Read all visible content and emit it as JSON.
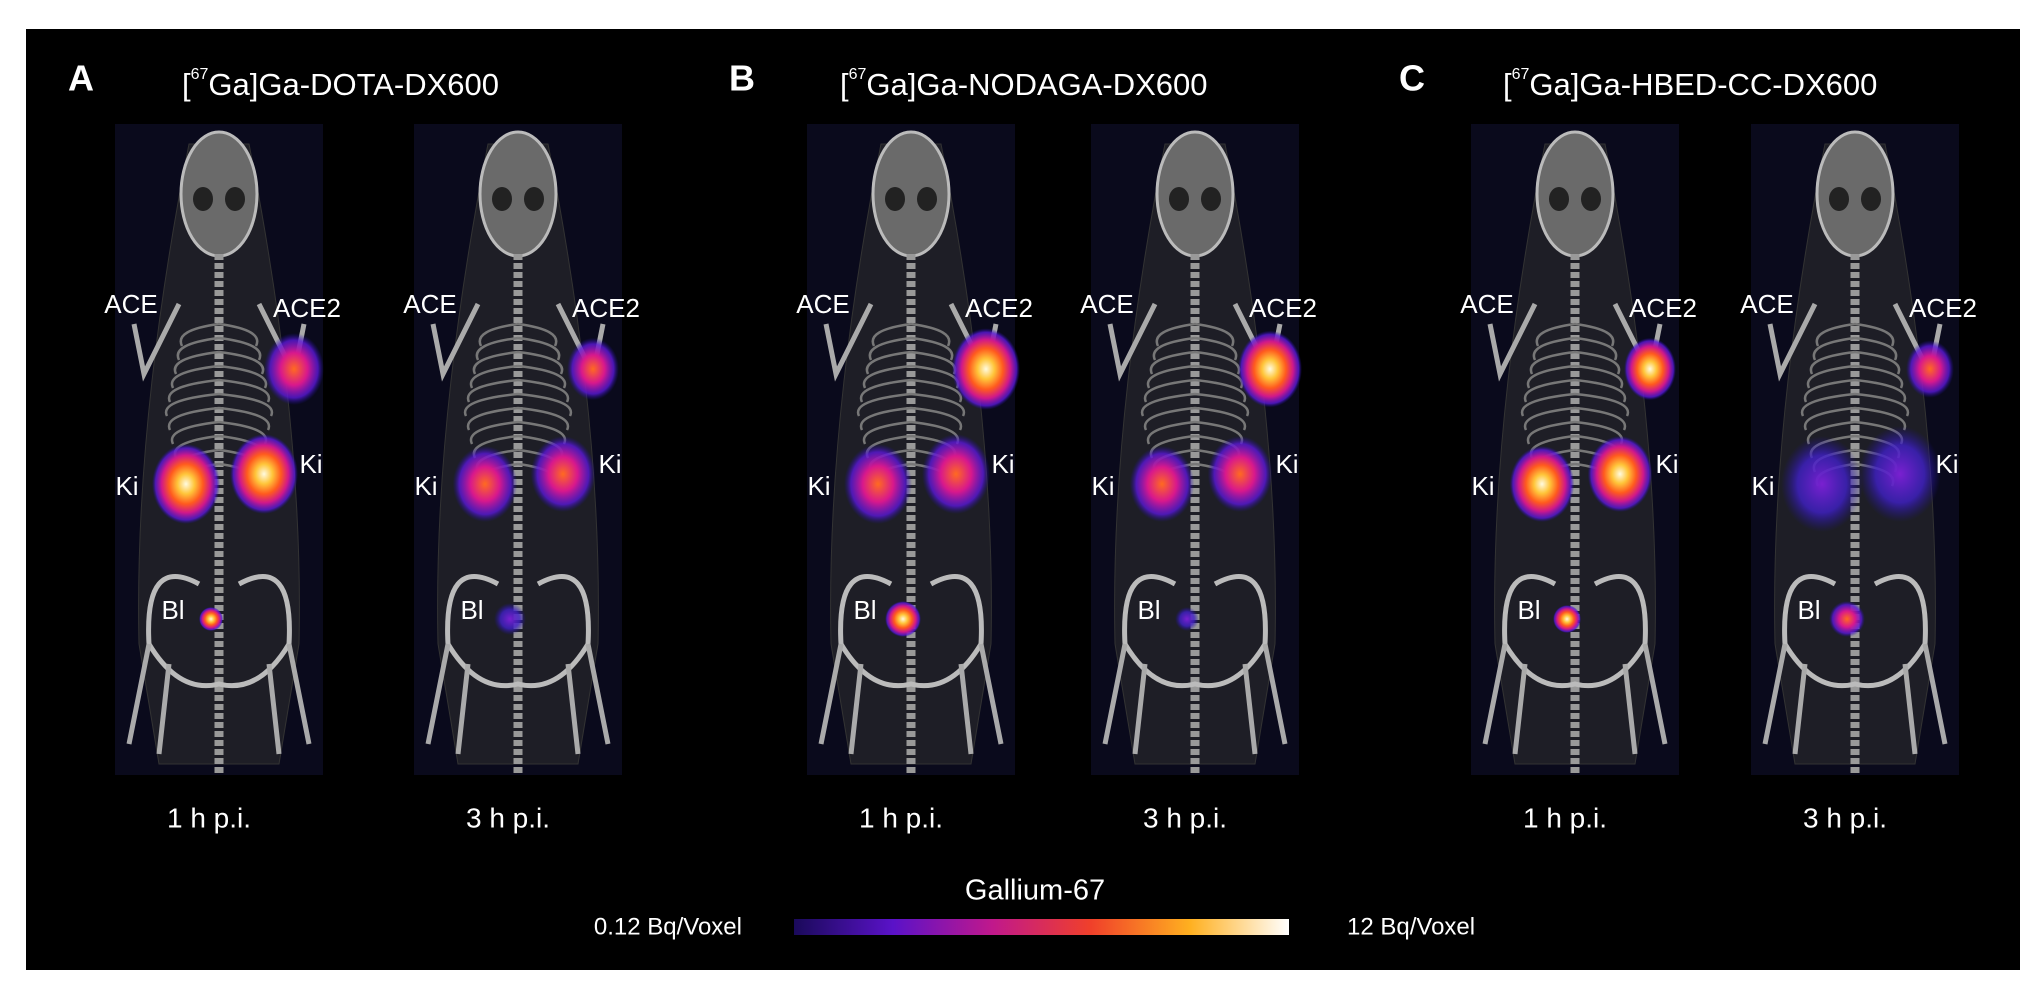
{
  "panels": [
    {
      "letter": "A",
      "title": {
        "open": "[",
        "mass": "67",
        "rest": "Ga]Ga-DOTA-DX600"
      },
      "mice": [
        {
          "time": "1 h p.i.",
          "labels": {
            "ace": "ACE",
            "ace2": "ACE2",
            "ki_left": "Ki",
            "ki_right": "Ki",
            "bl": "Bl"
          }
        },
        {
          "time": "3 h p.i.",
          "labels": {
            "ace": "ACE",
            "ace2": "ACE2",
            "ki_left": "Ki",
            "ki_right": "Ki",
            "bl": "Bl"
          }
        }
      ]
    },
    {
      "letter": "B",
      "title": {
        "open": "[",
        "mass": "67",
        "rest": "Ga]Ga-NODAGA-DX600"
      },
      "mice": [
        {
          "time": "1 h p.i.",
          "labels": {
            "ace": "ACE",
            "ace2": "ACE2",
            "ki_left": "Ki",
            "ki_right": "Ki",
            "bl": "Bl"
          }
        },
        {
          "time": "3 h p.i.",
          "labels": {
            "ace": "ACE",
            "ace2": "ACE2",
            "ki_left": "Ki",
            "ki_right": "Ki",
            "bl": "Bl"
          }
        }
      ]
    },
    {
      "letter": "C",
      "title": {
        "open": "[",
        "mass": "67",
        "rest": "Ga]Ga-HBED-CC-DX600"
      },
      "mice": [
        {
          "time": "1 h p.i.",
          "labels": {
            "ace": "ACE",
            "ace2": "ACE2",
            "ki_left": "Ki",
            "ki_right": "Ki",
            "bl": "Bl"
          }
        },
        {
          "time": "3 h p.i.",
          "labels": {
            "ace": "ACE",
            "ace2": "ACE2",
            "ki_left": "Ki",
            "ki_right": "Ki",
            "bl": "Bl"
          }
        }
      ]
    }
  ],
  "colorbar": {
    "title": "Gallium-67",
    "min_label": "0.12 Bq/Voxel",
    "max_label": "12 Bq/Voxel"
  }
}
